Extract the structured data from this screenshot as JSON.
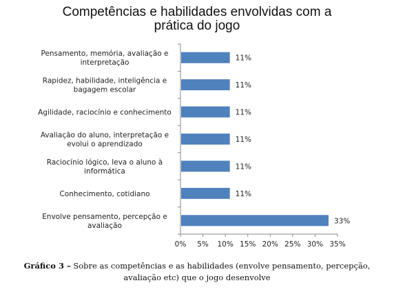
{
  "chart_data": {
    "type": "bar",
    "orientation": "horizontal",
    "title_lines": [
      "Competências e habilidades envolvidas com a",
      "prática do jogo"
    ],
    "categories": [
      [
        "Pensamento, memória, avaliação e",
        "interpretação"
      ],
      [
        "Rapidez, habilidade, inteligência e",
        "bagagem escolar"
      ],
      [
        "Agilidade, raciocínio e conhecimento"
      ],
      [
        "Avaliação do aluno, interpretação e",
        "evolui o aprendizado"
      ],
      [
        "Raciocínio lógico, leva o aluno à",
        "informática"
      ],
      [
        "Conhecimento, cotidiano"
      ],
      [
        "Envolve pensamento, percepção e",
        "avaliação"
      ]
    ],
    "values": [
      11,
      11,
      11,
      11,
      11,
      11,
      33
    ],
    "data_labels": [
      "11%",
      "11%",
      "11%",
      "11%",
      "11%",
      "11%",
      "33%"
    ],
    "xlim": [
      0,
      35
    ],
    "x_ticks": [
      "0%",
      "5%",
      "10%",
      "15%",
      "20%",
      "25%",
      "30%",
      "35%"
    ],
    "bar_color": "#4f81bd",
    "grid": false,
    "legend": "none"
  },
  "caption": {
    "label": "Gráfico 3 –",
    "text": "Sobre as competências e as habilidades (envolve pensamento, percepção,",
    "text_line2": "avaliação etc) que o jogo desenvolve"
  }
}
